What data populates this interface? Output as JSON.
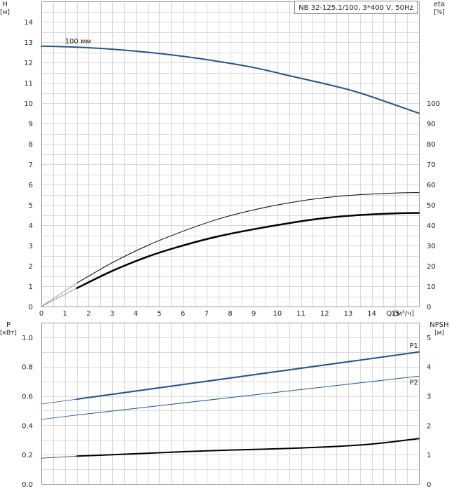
{
  "chart_data": [
    {
      "type": "line",
      "title": "NB 32-125.1/100, 3*400 V, 50Hz",
      "xlabel": "Q [м³/ч]",
      "ylabel": "H\n[м]",
      "y2label": "eta\n[%]",
      "xlim": [
        0,
        16
      ],
      "ylim": [
        0,
        15
      ],
      "y2lim": [
        0,
        150
      ],
      "x_ticks": [
        "0",
        "1",
        "2",
        "3",
        "4",
        "5",
        "6",
        "7",
        "8",
        "9",
        "10",
        "11",
        "12",
        "13",
        "14",
        "15"
      ],
      "y_ticks": [
        "0",
        "1",
        "2",
        "3",
        "4",
        "5",
        "6",
        "7",
        "8",
        "9",
        "10",
        "11",
        "12",
        "13",
        "14"
      ],
      "y2_ticks": [
        "0",
        "10",
        "20",
        "30",
        "40",
        "50",
        "60",
        "70",
        "80",
        "90",
        "100"
      ],
      "grid": true,
      "annotations": [
        "100 мм"
      ],
      "series": [
        {
          "name": "100 мм",
          "axis": "left",
          "color": "#1f5596",
          "width": 2,
          "x": [
            0,
            1.5,
            3,
            4.5,
            6,
            7.5,
            9,
            10.5,
            12,
            13.5,
            16
          ],
          "y": [
            12.8,
            12.75,
            12.65,
            12.5,
            12.3,
            12.05,
            11.75,
            11.35,
            10.95,
            10.5,
            9.5
          ]
        },
        {
          "axis": "left",
          "color": "#000000",
          "width": 1,
          "x": [
            1.5,
            3,
            4.5,
            6,
            7.5,
            9,
            10.5,
            12,
            13.5,
            15,
            16
          ],
          "y": [
            1.15,
            2.15,
            3.0,
            3.7,
            4.3,
            4.75,
            5.1,
            5.35,
            5.5,
            5.58,
            5.6
          ]
        },
        {
          "axis": "left",
          "color": "#000000",
          "width": 2.5,
          "x": [
            1.5,
            3,
            4.5,
            6,
            7.5,
            9,
            10.5,
            12,
            13.5,
            15,
            16
          ],
          "y": [
            0.9,
            1.75,
            2.45,
            3.0,
            3.45,
            3.8,
            4.1,
            4.35,
            4.5,
            4.58,
            4.6
          ]
        },
        {
          "axis": "left",
          "color": "#888888",
          "width": 0.8,
          "x": [
            0,
            1.5
          ],
          "y": [
            0,
            1.15
          ]
        },
        {
          "axis": "left",
          "color": "#888888",
          "width": 0.8,
          "x": [
            0,
            1.5
          ],
          "y": [
            0,
            0.9
          ]
        }
      ]
    },
    {
      "type": "line",
      "ylabel": "P\n[кВт]",
      "y2label": "NPSH\n[м]",
      "xlim": [
        0,
        16
      ],
      "ylim": [
        0,
        1.1
      ],
      "y2lim": [
        0,
        5.5
      ],
      "y_ticks": [
        "0.0",
        "0.2",
        "0.4",
        "0.6",
        "0.8",
        "1.0"
      ],
      "y2_ticks": [
        "0",
        "1",
        "2",
        "3",
        "4",
        "5"
      ],
      "grid": true,
      "series": [
        {
          "name": "P1",
          "axis": "left",
          "color": "#1f5596",
          "width": 2,
          "x": [
            1.5,
            16
          ],
          "y": [
            0.578,
            0.9
          ]
        },
        {
          "name": "P2",
          "axis": "left",
          "color": "#1f5596",
          "width": 1,
          "x": [
            1.5,
            16
          ],
          "y": [
            0.47,
            0.735
          ]
        },
        {
          "axis": "right",
          "color": "#000000",
          "width": 2,
          "x": [
            1.5,
            4,
            7,
            10,
            12,
            14,
            16
          ],
          "y": [
            0.95,
            1.03,
            1.13,
            1.2,
            1.26,
            1.36,
            1.55
          ]
        },
        {
          "axis": "left",
          "color": "#1f5596",
          "width": 0.8,
          "x": [
            0,
            1.5
          ],
          "y": [
            0.545,
            0.578
          ]
        },
        {
          "axis": "left",
          "color": "#1f5596",
          "width": 0.8,
          "x": [
            0,
            1.5
          ],
          "y": [
            0.44,
            0.47
          ]
        },
        {
          "axis": "right",
          "color": "#444444",
          "width": 0.8,
          "x": [
            0,
            1.5
          ],
          "y": [
            0.88,
            0.95
          ]
        }
      ]
    }
  ]
}
